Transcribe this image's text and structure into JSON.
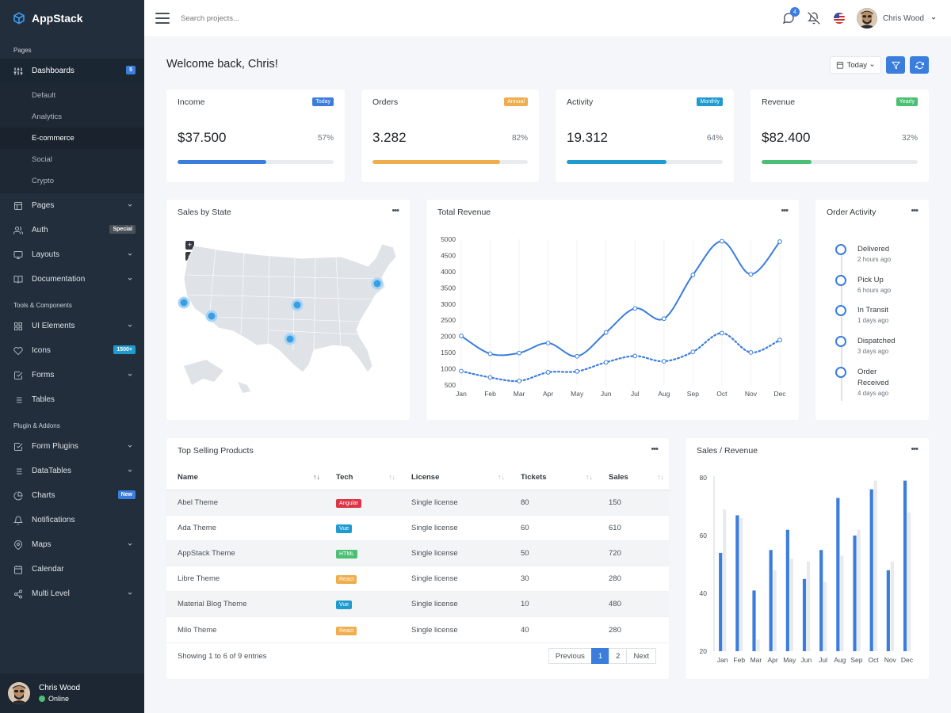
{
  "sidebar": {
    "brand": "AppStack",
    "sections": {
      "pages": "Pages",
      "tools": "Tools & Components",
      "plugins": "Plugin & Addons"
    },
    "dashboards": {
      "label": "Dashboards",
      "badge": "5"
    },
    "dashboard_subitems": [
      "Default",
      "Analytics",
      "E-commerce",
      "Social",
      "Crypto"
    ],
    "pages_label": "Pages",
    "auth": {
      "label": "Auth",
      "badge": "Special"
    },
    "layouts_label": "Layouts",
    "documentation_label": "Documentation",
    "ui_elements_label": "UI Elements",
    "icons": {
      "label": "Icons",
      "badge": "1500+"
    },
    "forms_label": "Forms",
    "tables_label": "Tables",
    "form_plugins_label": "Form Plugins",
    "datatables_label": "DataTables",
    "charts": {
      "label": "Charts",
      "badge": "New"
    },
    "notifications_label": "Notifications",
    "maps_label": "Maps",
    "calendar_label": "Calendar",
    "multi_level_label": "Multi Level",
    "user": {
      "name": "Chris Wood",
      "status": "Online"
    }
  },
  "topbar": {
    "search_placeholder": "Search projects...",
    "messages_count": "4",
    "user_name": "Chris Wood"
  },
  "main": {
    "title": "Welcome back, Chris!",
    "date_button": "Today"
  },
  "stats": [
    {
      "title": "Income",
      "badge": "Today",
      "value": "$37.500",
      "percent": "57%",
      "progress": 0.57,
      "color": "#3b7ddd"
    },
    {
      "title": "Orders",
      "badge": "Annual",
      "value": "3.282",
      "percent": "82%",
      "progress": 0.82,
      "color": "#f0ad4e"
    },
    {
      "title": "Activity",
      "badge": "Monthly",
      "value": "19.312",
      "percent": "64%",
      "progress": 0.64,
      "color": "#1f9bcf"
    },
    {
      "title": "Revenue",
      "badge": "Yearly",
      "value": "$82.400",
      "percent": "32%",
      "progress": 0.32,
      "color": "#4bbf73"
    }
  ],
  "sales_by_state": {
    "title": "Sales by State",
    "zoom_in": "+",
    "zoom_out": "−"
  },
  "order_activity": {
    "title": "Order Activity",
    "items": [
      {
        "label": "Delivered",
        "time": "2 hours ago"
      },
      {
        "label": "Pick Up",
        "time": "6 hours ago"
      },
      {
        "label": "In Transit",
        "time": "1 days ago"
      },
      {
        "label": "Dispatched",
        "time": "3 days ago"
      },
      {
        "label": "Order Received",
        "time": "4 days ago"
      }
    ]
  },
  "top_products": {
    "title": "Top Selling Products",
    "columns": [
      "Name",
      "Tech",
      "License",
      "Tickets",
      "Sales"
    ],
    "rows": [
      {
        "name": "Abel Theme",
        "tech": "Angular",
        "tech_color": "#dc3545",
        "license": "Single license",
        "tickets": "80",
        "sales": "150"
      },
      {
        "name": "Ada Theme",
        "tech": "Vue",
        "tech_color": "#1f9bcf",
        "license": "Single license",
        "tickets": "60",
        "sales": "610"
      },
      {
        "name": "AppStack Theme",
        "tech": "HTML",
        "tech_color": "#4bbf73",
        "license": "Single license",
        "tickets": "50",
        "sales": "720"
      },
      {
        "name": "Libre Theme",
        "tech": "React",
        "tech_color": "#f0ad4e",
        "license": "Single license",
        "tickets": "30",
        "sales": "280"
      },
      {
        "name": "Material Blog Theme",
        "tech": "Vue",
        "tech_color": "#1f9bcf",
        "license": "Single license",
        "tickets": "10",
        "sales": "480"
      },
      {
        "name": "Milo Theme",
        "tech": "React",
        "tech_color": "#f0ad4e",
        "license": "Single license",
        "tickets": "40",
        "sales": "280"
      }
    ],
    "info": "Showing 1 to 6 of 9 entries",
    "pagination": {
      "previous": "Previous",
      "page1": "1",
      "page2": "2",
      "next": "Next"
    }
  },
  "chart_data": [
    {
      "type": "line",
      "title": "Total Revenue",
      "categories": [
        "Jan",
        "Feb",
        "Mar",
        "Apr",
        "May",
        "Jun",
        "Jul",
        "Aug",
        "Sep",
        "Oct",
        "Nov",
        "Dec"
      ],
      "ylim": [
        500,
        5000
      ],
      "yticks": [
        500,
        1000,
        1500,
        2000,
        2500,
        3000,
        3500,
        4000,
        4500,
        5000
      ],
      "grid": "vertical",
      "series": [
        {
          "style": "solid",
          "color": "#3b7ddd",
          "values": [
            2015,
            1465,
            1487,
            1796,
            1387,
            2123,
            2866,
            2548,
            3902,
            4938,
            3917,
            4927
          ]
        },
        {
          "style": "dotted",
          "color": "#3b7ddd",
          "values": [
            928,
            734,
            626,
            893,
            921,
            1202,
            1396,
            1232,
            1524,
            2102,
            1506,
            1887
          ]
        }
      ]
    },
    {
      "type": "bar",
      "title": "Sales / Revenue",
      "categories": [
        "Jan",
        "Feb",
        "Mar",
        "Apr",
        "May",
        "Jun",
        "Jul",
        "Aug",
        "Sep",
        "Oct",
        "Nov",
        "Dec"
      ],
      "ylim": [
        20,
        80
      ],
      "yticks": [
        20,
        40,
        60,
        80
      ],
      "series": [
        {
          "color": "#3b7ddd",
          "values": [
            54,
            67,
            41,
            55,
            62,
            45,
            55,
            73,
            60,
            76,
            48,
            79
          ]
        },
        {
          "color": "#e8eaed",
          "values": [
            69,
            66,
            24,
            48,
            52,
            51,
            44,
            53,
            62,
            79,
            51,
            68
          ]
        }
      ]
    }
  ]
}
